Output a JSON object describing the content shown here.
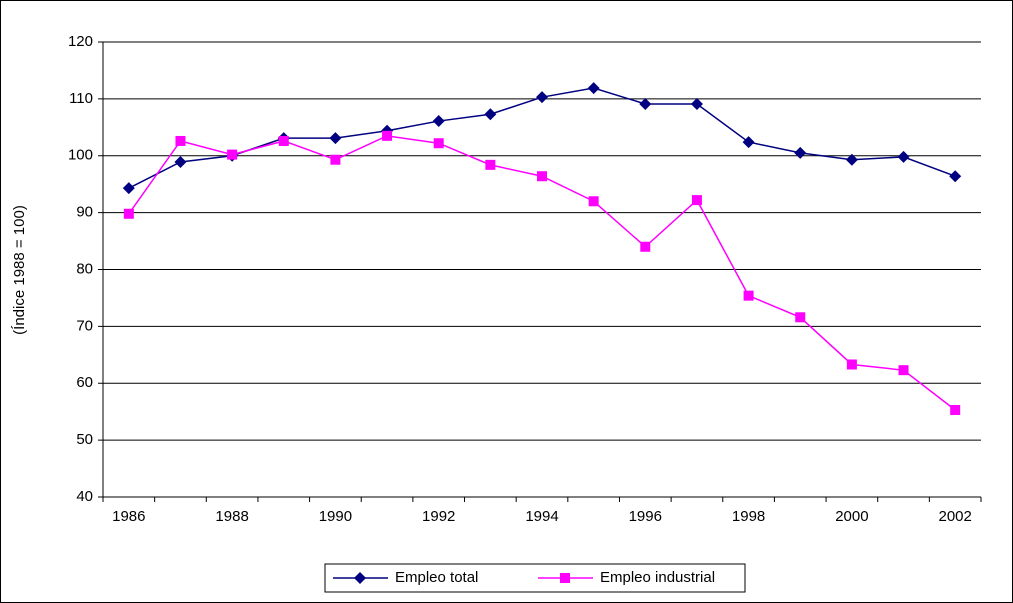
{
  "chart_data": {
    "type": "line",
    "y_label": "(Índice 1988 = 100)",
    "categories": [
      "1986",
      null,
      "1988",
      null,
      "1990",
      null,
      "1992",
      null,
      "1994",
      null,
      "1996",
      null,
      "1998",
      null,
      "2000",
      null,
      "2002"
    ],
    "series": [
      {
        "name": "Empleo total",
        "color": "#000080",
        "marker": "diamond",
        "values": [
          94.3,
          98.9,
          100,
          103.1,
          103.1,
          104.4,
          106.1,
          107.3,
          110.3,
          111.9,
          109.1,
          109.1,
          102.4,
          100.5,
          99.3,
          99.8,
          96.4
        ]
      },
      {
        "name": "Empleo industrial",
        "color": "#ff00ff",
        "marker": "square",
        "values": [
          89.8,
          102.6,
          100.2,
          102.6,
          99.3,
          103.5,
          102.2,
          98.4,
          96.4,
          92.0,
          84.0,
          92.2,
          75.4,
          71.6,
          63.3,
          62.3,
          55.3
        ]
      }
    ],
    "ylim": [
      40,
      120
    ],
    "yticks": [
      40,
      50,
      60,
      70,
      80,
      90,
      100,
      110,
      120
    ],
    "grid": true,
    "legend": "bottom"
  }
}
